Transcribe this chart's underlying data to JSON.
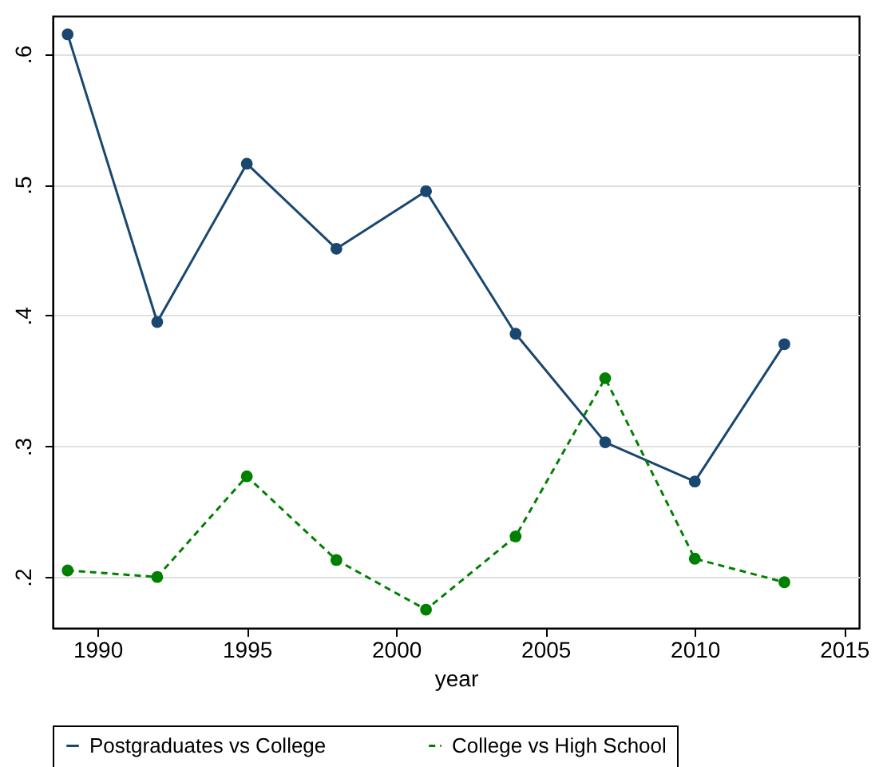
{
  "chart_data": {
    "type": "line",
    "xlabel": "year",
    "x": [
      1989,
      1992,
      1995,
      1998,
      2001,
      2004,
      2007,
      2010,
      2013
    ],
    "series": [
      {
        "name": "Postgraduates vs College",
        "color": "#1a476f",
        "line_style": "solid",
        "values": [
          0.615,
          0.395,
          0.516,
          0.451,
          0.495,
          0.386,
          0.303,
          0.273,
          0.378
        ]
      },
      {
        "name": "College vs High School",
        "color": "#008000",
        "line_style": "dashed",
        "values": [
          0.205,
          0.2,
          0.277,
          0.213,
          0.175,
          0.231,
          0.352,
          0.214,
          0.196
        ]
      }
    ],
    "xlim": [
      1988.5,
      2015.5
    ],
    "xticks": [
      1990,
      1995,
      2000,
      2005,
      2010,
      2015
    ],
    "ylim": [
      0.161,
      0.629
    ],
    "yticks": [
      {
        "value": 0.2,
        "label": ".2"
      },
      {
        "value": 0.3,
        "label": ".3"
      },
      {
        "value": 0.4,
        "label": ".4"
      },
      {
        "value": 0.5,
        "label": ".5"
      },
      {
        "value": 0.6,
        "label": ".6"
      }
    ],
    "grid": "y",
    "legend": "bottom",
    "marker": "circle"
  }
}
